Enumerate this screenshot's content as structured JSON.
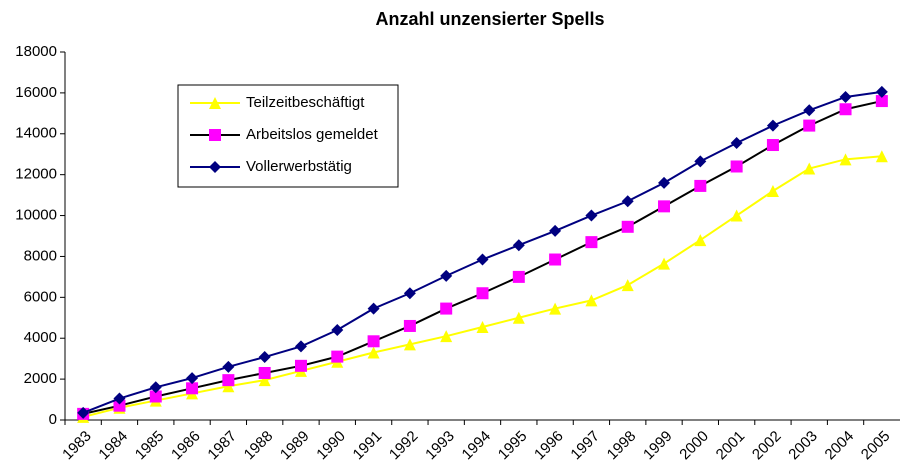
{
  "chart_data": {
    "type": "line",
    "title": "Anzahl unzensierter Spells",
    "categories": [
      "1983",
      "1984",
      "1985",
      "1986",
      "1987",
      "1988",
      "1989",
      "1990",
      "1991",
      "1992",
      "1993",
      "1994",
      "1995",
      "1996",
      "1997",
      "1998",
      "1999",
      "2000",
      "2001",
      "2002",
      "2003",
      "2004",
      "2005"
    ],
    "series": [
      {
        "name": "Teilzeitbeschäftigt",
        "color": "#ffff00",
        "marker_color": "#ffff00",
        "marker": "triangle",
        "values": [
          150,
          600,
          950,
          1300,
          1650,
          1950,
          2400,
          2850,
          3300,
          3700,
          4100,
          4550,
          5000,
          5450,
          5850,
          6600,
          7650,
          8800,
          10000,
          11200,
          12300,
          12750,
          12900
        ]
      },
      {
        "name": "Arbeitslos gemeldet",
        "color": "#000000",
        "marker_color": "#ff00ff",
        "marker": "square",
        "values": [
          300,
          700,
          1150,
          1550,
          1950,
          2300,
          2650,
          3100,
          3850,
          4600,
          5450,
          6200,
          7000,
          7850,
          8700,
          9450,
          10450,
          11450,
          12400,
          13450,
          14400,
          15200,
          15600
        ]
      },
      {
        "name": "Vollerwerbstätig",
        "color": "#000080",
        "marker_color": "#000080",
        "marker": "diamond",
        "values": [
          350,
          1050,
          1600,
          2050,
          2600,
          3080,
          3600,
          4400,
          5450,
          6200,
          7050,
          7850,
          8550,
          9250,
          10000,
          10700,
          11600,
          12650,
          13550,
          14400,
          15150,
          15800,
          16050
        ]
      }
    ],
    "ylim": [
      0,
      18000
    ],
    "yticks": [
      0,
      2000,
      4000,
      6000,
      8000,
      10000,
      12000,
      14000,
      16000,
      18000
    ],
    "grid": false,
    "legend": "upper left"
  }
}
